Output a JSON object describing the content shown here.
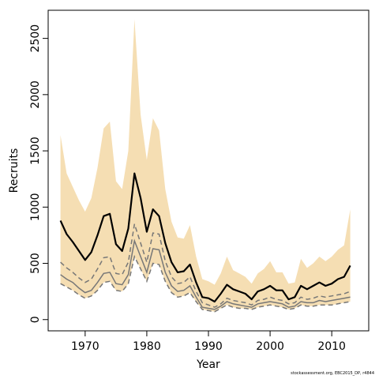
{
  "chart_data": {
    "type": "line",
    "title": "",
    "xlabel": "Year",
    "ylabel": "Recruits",
    "xlim": [
      1964,
      2016
    ],
    "ylim": [
      -100,
      2750
    ],
    "xticks": [
      1970,
      1980,
      1990,
      2000,
      2010
    ],
    "yticks": [
      0,
      500,
      1000,
      1500,
      2000,
      2500
    ],
    "grid": false,
    "colors": {
      "band": "#f5deb3",
      "median": "#000000",
      "dashed": "#777777",
      "solid_grey": "#777777"
    },
    "x": [
      1966,
      1967,
      1968,
      1969,
      1970,
      1971,
      1972,
      1973,
      1974,
      1975,
      1976,
      1977,
      1978,
      1979,
      1980,
      1981,
      1982,
      1983,
      1984,
      1985,
      1986,
      1987,
      1988,
      1989,
      1990,
      1991,
      1992,
      1993,
      1994,
      1995,
      1996,
      1997,
      1998,
      1999,
      2000,
      2001,
      2002,
      2003,
      2004,
      2005,
      2006,
      2007,
      2008,
      2009,
      2010,
      2011,
      2012,
      2013
    ],
    "series": [
      {
        "style": "band_upper",
        "values": [
          1640,
          1300,
          1180,
          1060,
          960,
          1080,
          1350,
          1700,
          1760,
          1230,
          1160,
          1500,
          2670,
          1820,
          1420,
          1790,
          1680,
          1160,
          870,
          730,
          720,
          840,
          560,
          360,
          340,
          310,
          410,
          560,
          440,
          410,
          380,
          320,
          410,
          450,
          520,
          420,
          420,
          320,
          330,
          540,
          460,
          500,
          560,
          520,
          560,
          620,
          660,
          980
        ]
      },
      {
        "style": "median",
        "values": [
          880,
          760,
          690,
          610,
          530,
          600,
          750,
          920,
          940,
          670,
          610,
          810,
          1300,
          1080,
          780,
          980,
          920,
          680,
          510,
          420,
          430,
          490,
          330,
          200,
          190,
          160,
          230,
          310,
          270,
          250,
          230,
          180,
          250,
          270,
          300,
          260,
          260,
          180,
          200,
          300,
          270,
          300,
          330,
          300,
          320,
          360,
          380,
          480
        ]
      },
      {
        "style": "dashed_upper",
        "values": [
          510,
          460,
          420,
          370,
          330,
          360,
          450,
          550,
          560,
          410,
          400,
          510,
          850,
          680,
          510,
          770,
          760,
          520,
          380,
          320,
          330,
          380,
          250,
          150,
          130,
          110,
          140,
          190,
          170,
          160,
          150,
          130,
          170,
          180,
          200,
          180,
          170,
          140,
          150,
          200,
          180,
          190,
          210,
          200,
          210,
          220,
          230,
          250
        ]
      },
      {
        "style": "solid_grey",
        "values": [
          400,
          360,
          330,
          280,
          240,
          260,
          330,
          410,
          420,
          320,
          310,
          400,
          700,
          560,
          420,
          630,
          620,
          420,
          300,
          250,
          260,
          300,
          200,
          110,
          100,
          90,
          120,
          160,
          140,
          130,
          120,
          110,
          140,
          150,
          160,
          150,
          140,
          110,
          120,
          160,
          150,
          150,
          170,
          160,
          170,
          180,
          190,
          200
        ]
      },
      {
        "style": "dashed_lower",
        "values": [
          320,
          290,
          260,
          220,
          190,
          210,
          260,
          330,
          340,
          260,
          250,
          320,
          560,
          450,
          340,
          500,
          490,
          340,
          240,
          200,
          210,
          240,
          160,
          90,
          80,
          70,
          100,
          130,
          110,
          100,
          100,
          90,
          110,
          120,
          130,
          120,
          110,
          90,
          100,
          130,
          120,
          120,
          130,
          130,
          130,
          140,
          150,
          160
        ]
      },
      {
        "style": "band_lower",
        "values": [
          320,
          290,
          260,
          220,
          190,
          210,
          260,
          330,
          340,
          260,
          250,
          320,
          560,
          450,
          340,
          500,
          490,
          340,
          240,
          200,
          210,
          240,
          160,
          90,
          80,
          70,
          100,
          130,
          110,
          100,
          100,
          90,
          110,
          120,
          130,
          120,
          110,
          90,
          100,
          130,
          120,
          120,
          130,
          130,
          130,
          140,
          150,
          160
        ]
      }
    ]
  },
  "footnote": "stockassessment.org, EBC2015_DP, r4844"
}
